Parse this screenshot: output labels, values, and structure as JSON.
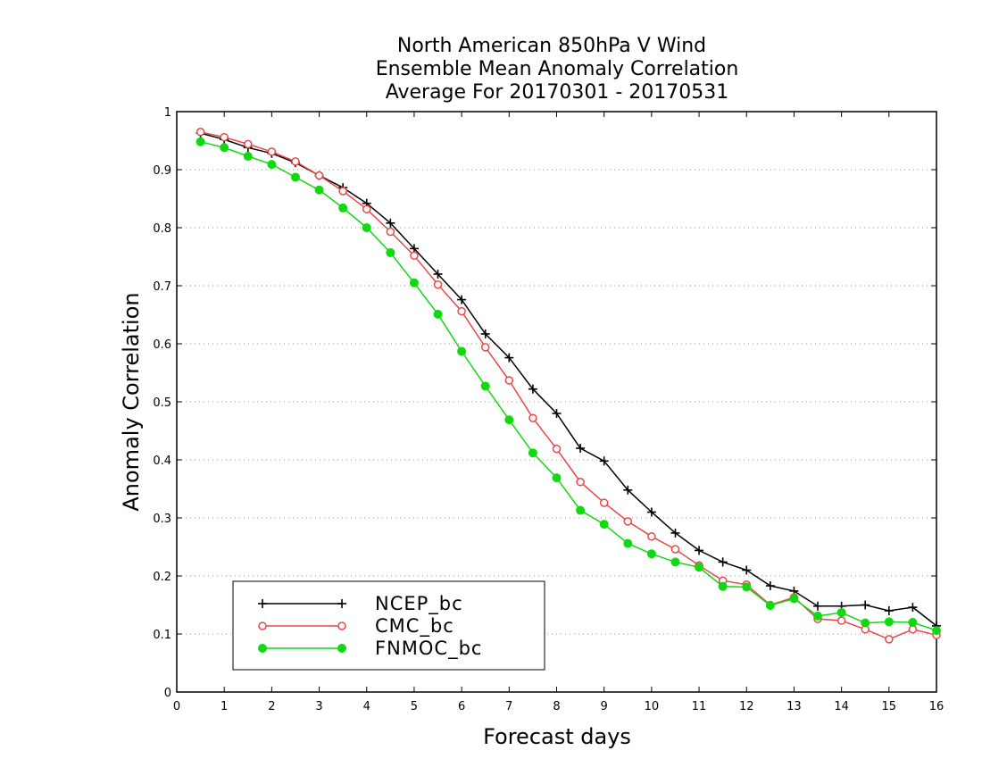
{
  "chart_data": {
    "type": "line",
    "title": [
      "North American 850hPa V Wind",
      "Ensemble Mean Anomaly Correlation",
      "Average For 20170301 - 20170531"
    ],
    "xlabel": "Forecast days",
    "ylabel": "Anomaly Correlation",
    "xlim": [
      0,
      16
    ],
    "ylim": [
      0,
      1
    ],
    "xticks": [
      0,
      1,
      2,
      3,
      4,
      5,
      6,
      7,
      8,
      9,
      10,
      11,
      12,
      13,
      14,
      15,
      16
    ],
    "xtick_labels": [
      "0",
      "1",
      "2",
      "3",
      "4",
      "5",
      "6",
      "7",
      "8",
      "9",
      "10",
      "11",
      "12",
      "13",
      "14",
      "15",
      "16"
    ],
    "yticks": [
      0,
      0.1,
      0.2,
      0.3,
      0.4,
      0.5,
      0.6,
      0.7,
      0.8,
      0.9,
      1
    ],
    "ytick_labels": [
      "0",
      "0.1",
      "0.2",
      "0.3",
      "0.4",
      "0.5",
      "0.6",
      "0.7",
      "0.8",
      "0.9",
      "1"
    ],
    "grid": "horizontal dotted",
    "legend_position": "bottom-left",
    "x": [
      0.5,
      1,
      1.5,
      2,
      2.5,
      3,
      3.5,
      4,
      4.5,
      5,
      5.5,
      6,
      6.5,
      7,
      7.5,
      8,
      8.5,
      9,
      9.5,
      10,
      10.5,
      11,
      11.5,
      12,
      12.5,
      13,
      13.5,
      14,
      14.5,
      15,
      15.5,
      16
    ],
    "series": [
      {
        "name": "NCEP_bc",
        "color": "#000000",
        "marker": "plus",
        "values": [
          0.963,
          0.952,
          0.938,
          0.928,
          0.912,
          0.89,
          0.869,
          0.842,
          0.808,
          0.764,
          0.72,
          0.676,
          0.617,
          0.576,
          0.522,
          0.48,
          0.42,
          0.398,
          0.348,
          0.31,
          0.274,
          0.244,
          0.224,
          0.21,
          0.183,
          0.174,
          0.148,
          0.148,
          0.15,
          0.14,
          0.146,
          0.114
        ]
      },
      {
        "name": "CMC_bc",
        "color": "#e8474a",
        "marker": "open-circle",
        "values": [
          0.965,
          0.956,
          0.944,
          0.931,
          0.914,
          0.89,
          0.863,
          0.832,
          0.793,
          0.752,
          0.702,
          0.656,
          0.594,
          0.537,
          0.472,
          0.419,
          0.362,
          0.326,
          0.294,
          0.268,
          0.246,
          0.218,
          0.192,
          0.185,
          0.15,
          0.163,
          0.126,
          0.123,
          0.108,
          0.091,
          0.108,
          0.098
        ]
      },
      {
        "name": "FNMOC_bc",
        "color": "#11d911",
        "marker": "filled-circle",
        "values": [
          0.948,
          0.938,
          0.923,
          0.909,
          0.887,
          0.865,
          0.834,
          0.8,
          0.757,
          0.705,
          0.651,
          0.587,
          0.527,
          0.469,
          0.412,
          0.369,
          0.313,
          0.289,
          0.256,
          0.238,
          0.224,
          0.215,
          0.182,
          0.181,
          0.149,
          0.161,
          0.131,
          0.137,
          0.119,
          0.121,
          0.12,
          0.106
        ]
      }
    ]
  }
}
